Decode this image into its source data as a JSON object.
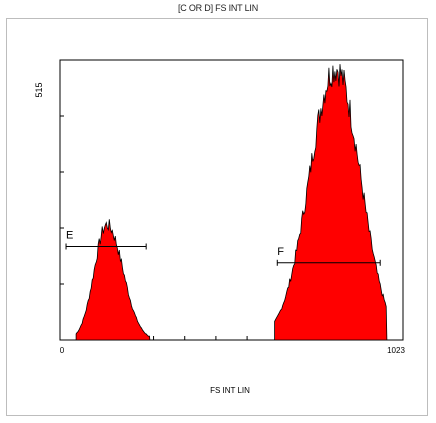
{
  "chart_data": {
    "type": "histogram",
    "title": "[C OR D] FS INT LIN",
    "xlabel": "FS INT LIN",
    "ylabel": "515",
    "x_tick_labels": [
      "0",
      "1023"
    ],
    "xlim": [
      0,
      1023
    ],
    "ylim": [
      0,
      515
    ],
    "fill_color": "#ff0000",
    "outline_color": "#000000",
    "peaks": [
      {
        "center": 140,
        "sigma_left": 38,
        "sigma_right": 48,
        "height": 212,
        "from": 48,
        "to": 268
      },
      {
        "center": 822,
        "sigma_left": 78,
        "sigma_right": 74,
        "height": 500,
        "from": 640,
        "to": 975
      }
    ],
    "regions": [
      {
        "label": "E",
        "x_start": 18,
        "x_end": 257,
        "y": 172
      },
      {
        "label": "F",
        "x_start": 648,
        "x_end": 955,
        "y": 142
      }
    ]
  }
}
